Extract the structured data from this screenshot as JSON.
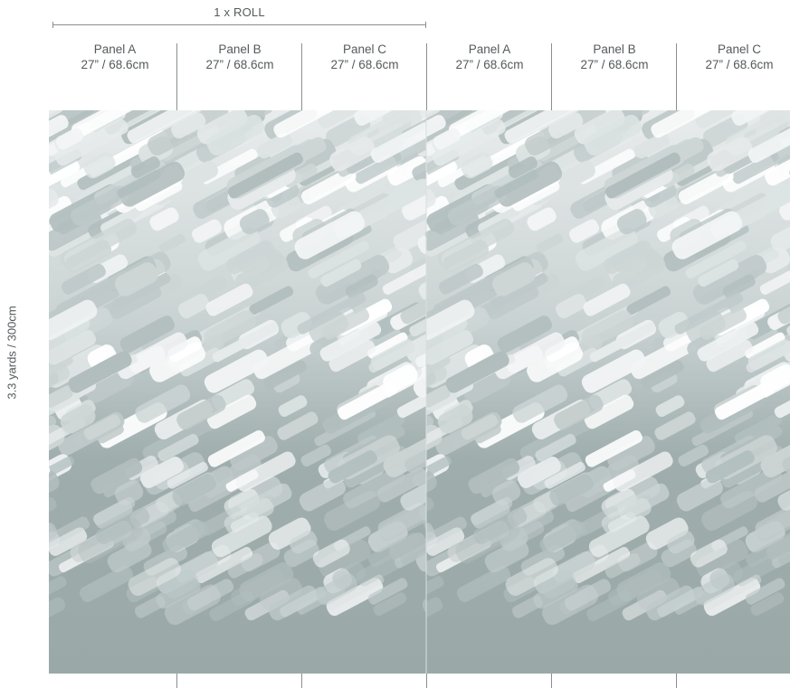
{
  "roll": {
    "label": "1 x ROLL"
  },
  "panels": [
    {
      "name": "Panel A",
      "size": "27” / 68.6cm"
    },
    {
      "name": "Panel B",
      "size": "27” / 68.6cm"
    },
    {
      "name": "Panel C",
      "size": "27” / 68.6cm"
    },
    {
      "name": "Panel A",
      "size": "27” / 68.6cm"
    },
    {
      "name": "Panel B",
      "size": "27” / 68.6cm"
    },
    {
      "name": "Panel C",
      "size": "27” / 68.6cm"
    }
  ],
  "height": {
    "label": "3.3 yards / 300cm"
  },
  "colors": {
    "base": "#9aa9a8",
    "light": "#eef0f1",
    "mid": "#c6cfcf",
    "stroke_dark": "#aeb9b9",
    "divider": "#8a8f91",
    "text": "#555a5c"
  }
}
